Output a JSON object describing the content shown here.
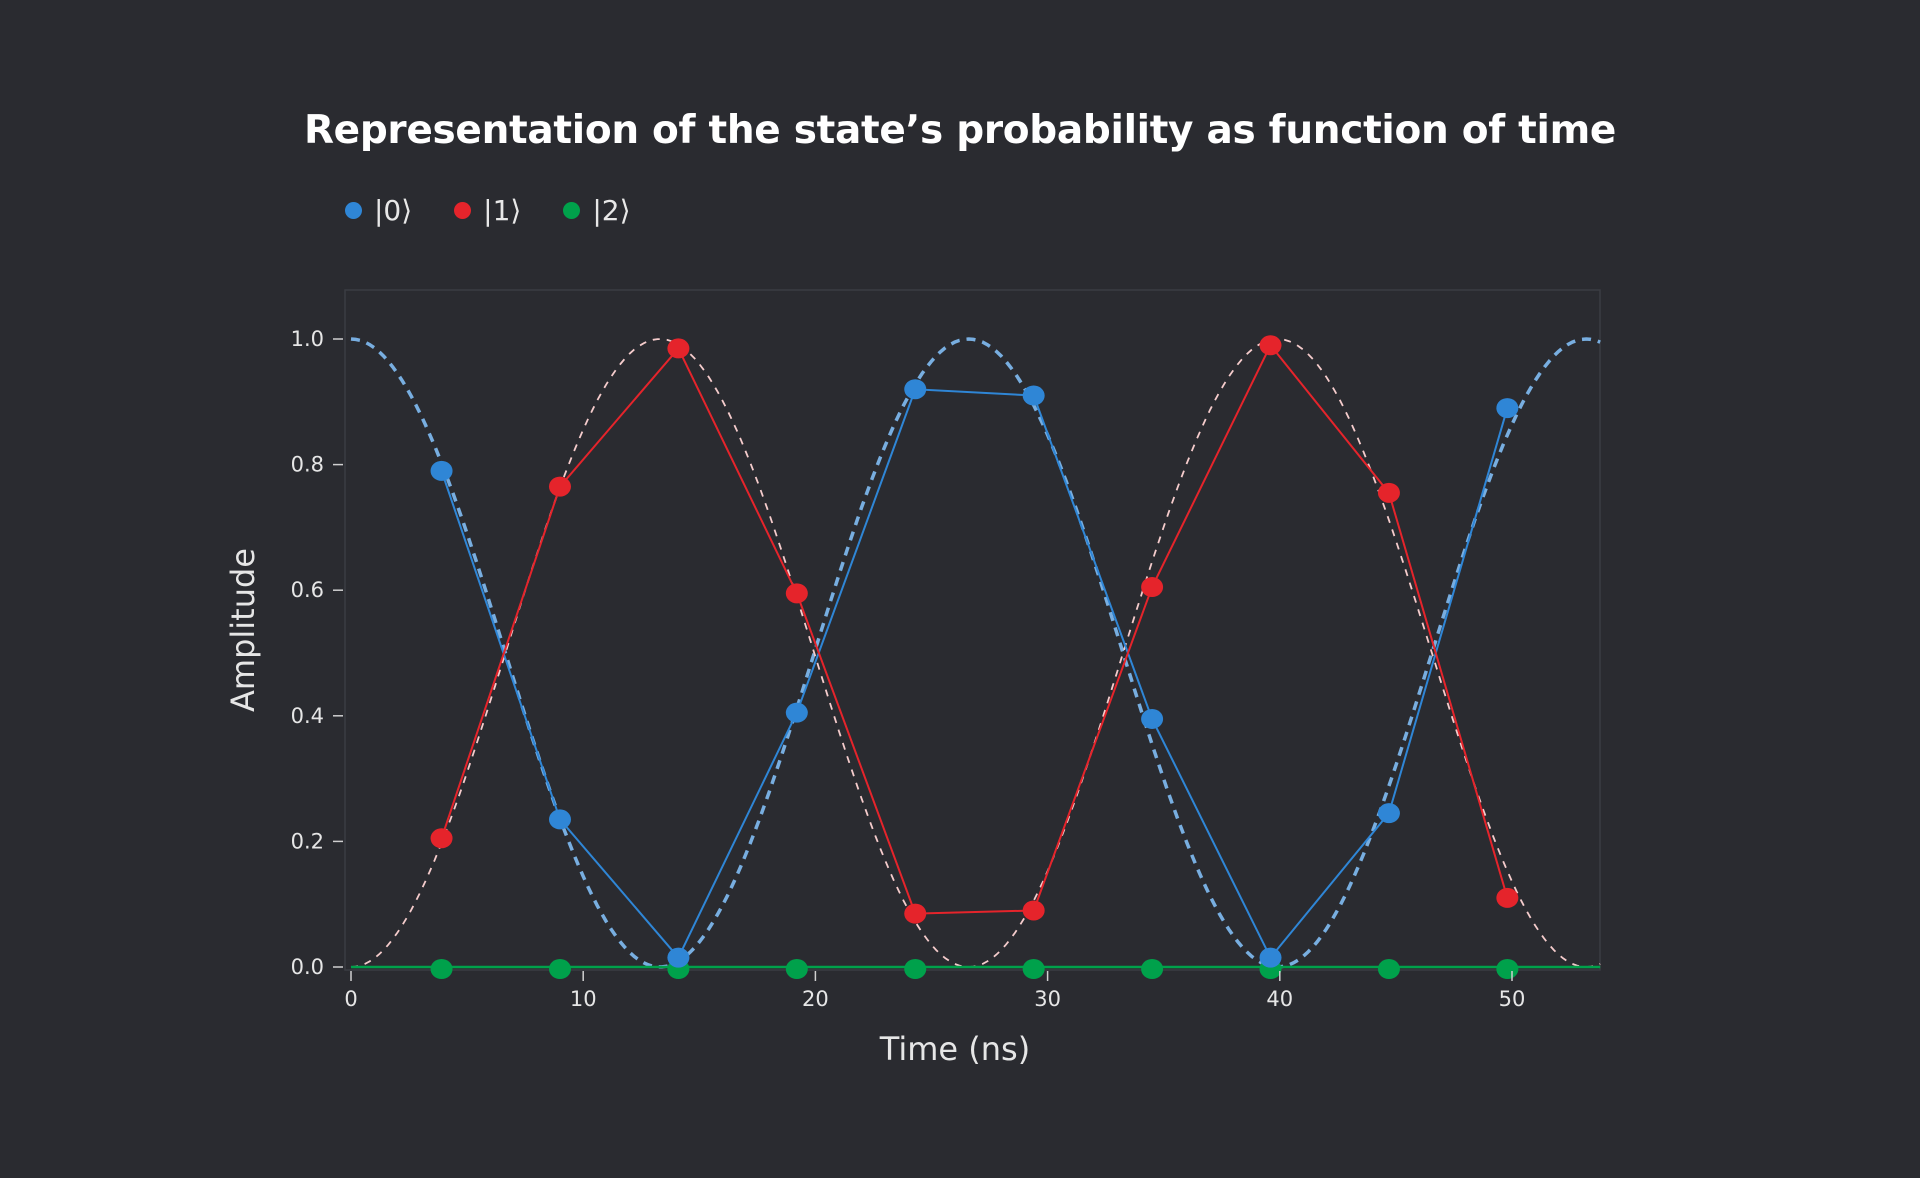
{
  "chart_data": {
    "type": "line",
    "title": "Representation of the state’s probability as function of time",
    "xlabel": "Time (ns)",
    "ylabel": "Amplitude",
    "xlim": [
      -0.3,
      53.8
    ],
    "ylim": [
      -0.01,
      1.078
    ],
    "xticks": [
      0,
      10,
      20,
      30,
      40,
      50
    ],
    "yticks": [
      "0.0",
      "0.2",
      "0.4",
      "0.6",
      "0.8",
      "1.0"
    ],
    "grid": false,
    "legend_position": "top-left",
    "x": [
      3.9,
      9.0,
      14.1,
      19.2,
      24.3,
      29.4,
      34.5,
      39.6,
      44.7,
      49.8
    ],
    "series": [
      {
        "name": "|0⟩",
        "color": "#2f86d6",
        "values": [
          0.79,
          0.235,
          0.015,
          0.405,
          0.92,
          0.91,
          0.395,
          0.015,
          0.245,
          0.89
        ]
      },
      {
        "name": "|1⟩",
        "color": "#e5242b",
        "values": [
          0.205,
          0.765,
          0.985,
          0.595,
          0.085,
          0.09,
          0.605,
          0.99,
          0.755,
          0.11
        ]
      },
      {
        "name": "|2⟩",
        "color": "#00a14b",
        "values": [
          0,
          0,
          0,
          0,
          0,
          0,
          0,
          0,
          0,
          0
        ]
      }
    ],
    "theory_curves": [
      {
        "of": "|0⟩",
        "form": "cos^2",
        "period_ns": 26.6,
        "amplitude": 1.0,
        "color": "#78aee0",
        "style": "dashed"
      },
      {
        "of": "|1⟩",
        "form": "sin^2",
        "period_ns": 26.6,
        "amplitude": 1.0,
        "color": "#f5cccc",
        "style": "dashed"
      },
      {
        "of": "|2⟩",
        "form": "zero",
        "color": "#00a14b",
        "style": "solid"
      }
    ]
  },
  "colors": {
    "background": "#2a2b30",
    "frame": "#3b3c42"
  }
}
